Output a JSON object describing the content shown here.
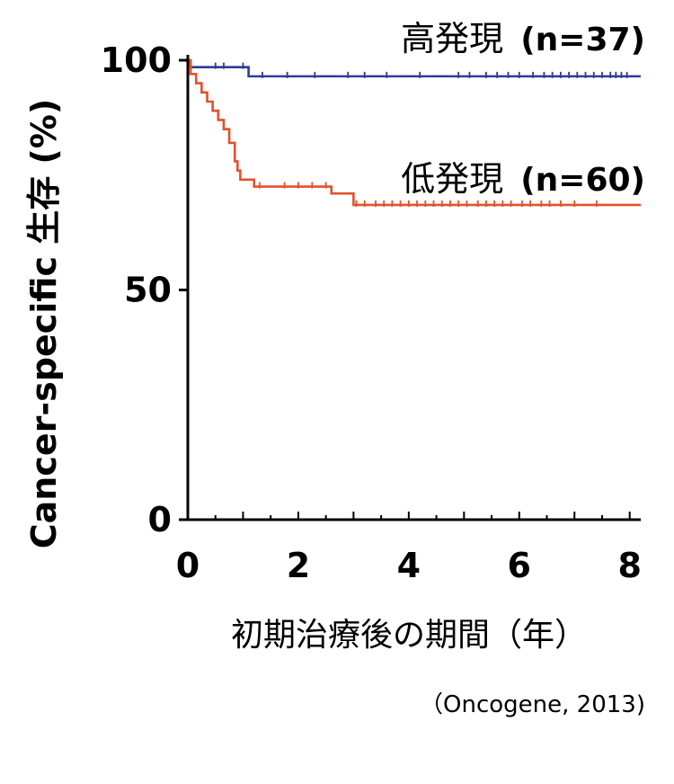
{
  "chart_data": {
    "type": "line",
    "title": "",
    "xlabel": "初期治療後の期間（年）",
    "ylabel": "Cancer-specific 生存 (%)",
    "xlim": [
      0,
      8.2
    ],
    "ylim": [
      0,
      100
    ],
    "x_ticks": [
      0,
      2,
      4,
      6,
      8
    ],
    "y_ticks": [
      0,
      50,
      100
    ],
    "grid": false,
    "source": "（Oncogene, 2013)",
    "colors": {
      "high": "#2e3c96",
      "low": "#e0522a",
      "axis": "#000000"
    },
    "series": [
      {
        "name": "高発現",
        "n_label": "(n=37)",
        "color": "#2e3c96",
        "step_x": [
          0,
          0.05,
          1.1,
          8.2
        ],
        "step_y": [
          100,
          98.5,
          96.5,
          96.5
        ],
        "censor_x": [
          0.5,
          0.65,
          1.0,
          1.35,
          1.8,
          2.3,
          2.9,
          3.2,
          3.6,
          4.2,
          4.9,
          5.1,
          5.4,
          5.6,
          5.8,
          6.0,
          6.25,
          6.45,
          6.6,
          6.75,
          6.9,
          7.05,
          7.2,
          7.35,
          7.5,
          7.65,
          7.75,
          7.85,
          7.95
        ]
      },
      {
        "name": "低発現",
        "n_label": "(n=60)",
        "color": "#e0522a",
        "step_x": [
          0,
          0.05,
          0.15,
          0.25,
          0.35,
          0.45,
          0.55,
          0.65,
          0.75,
          0.85,
          0.9,
          0.95,
          1.2,
          2.6,
          3.0,
          8.2
        ],
        "step_y": [
          100,
          97,
          95,
          93,
          91,
          89,
          87,
          85,
          82,
          78,
          76,
          74,
          72.5,
          71,
          68.5,
          68.5
        ],
        "censor_x": [
          1.3,
          1.75,
          2.0,
          2.25,
          2.5,
          3.05,
          3.2,
          3.4,
          3.55,
          3.7,
          3.85,
          4.0,
          4.15,
          4.3,
          4.45,
          4.6,
          4.75,
          4.9,
          5.05,
          5.25,
          5.4,
          5.55,
          5.7,
          5.85,
          6.05,
          6.2,
          6.4,
          6.55,
          6.75,
          7.0,
          7.4
        ]
      }
    ]
  }
}
